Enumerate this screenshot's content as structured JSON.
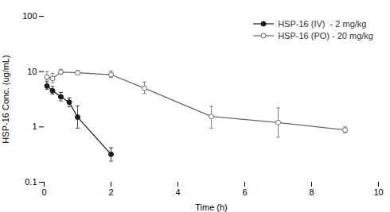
{
  "chart_data": {
    "type": "line",
    "xlabel": "Time (h)",
    "ylabel": "HSP-16 Conc. (ug/mL)",
    "log": "y",
    "xlim": [
      0,
      10
    ],
    "xticks": [
      0,
      2,
      4,
      6,
      8,
      10
    ],
    "ylim": [
      0.1,
      100
    ],
    "yticks": [
      0.1,
      1,
      10,
      100
    ],
    "grid": false,
    "legend": "upper right",
    "series": [
      {
        "name": "HSP-16 (IV)  - 2 mg/kg",
        "color": "#1a1a1a",
        "marker": "circle",
        "line_style": "solid",
        "x": [
          0.083,
          0.25,
          0.5,
          0.75,
          1.0,
          2.0
        ],
        "values": [
          5.5,
          4.5,
          3.5,
          2.8,
          1.5,
          0.32
        ],
        "yerr_lo": [
          0.7,
          0.6,
          0.55,
          0.5,
          0.55,
          0.08
        ],
        "yerr_hi": [
          1.1,
          0.9,
          0.7,
          0.55,
          0.9,
          0.1
        ]
      },
      {
        "name": "HSP-16 (PO) - 20 mg/kg",
        "color": "#666666",
        "marker": "open_circle",
        "line_style": "solid",
        "x": [
          0.083,
          0.25,
          0.5,
          1.0,
          2.0,
          3.0,
          5.0,
          7.0,
          9.0
        ],
        "values": [
          8.0,
          7.5,
          9.8,
          9.5,
          8.8,
          5.0,
          1.55,
          1.2,
          0.88
        ],
        "yerr_lo": [
          1.0,
          1.2,
          0.8,
          0.6,
          1.0,
          1.0,
          0.6,
          0.55,
          0.1
        ],
        "yerr_hi": [
          2.0,
          1.8,
          1.2,
          1.0,
          1.5,
          1.5,
          0.8,
          1.0,
          0.12
        ]
      }
    ]
  }
}
